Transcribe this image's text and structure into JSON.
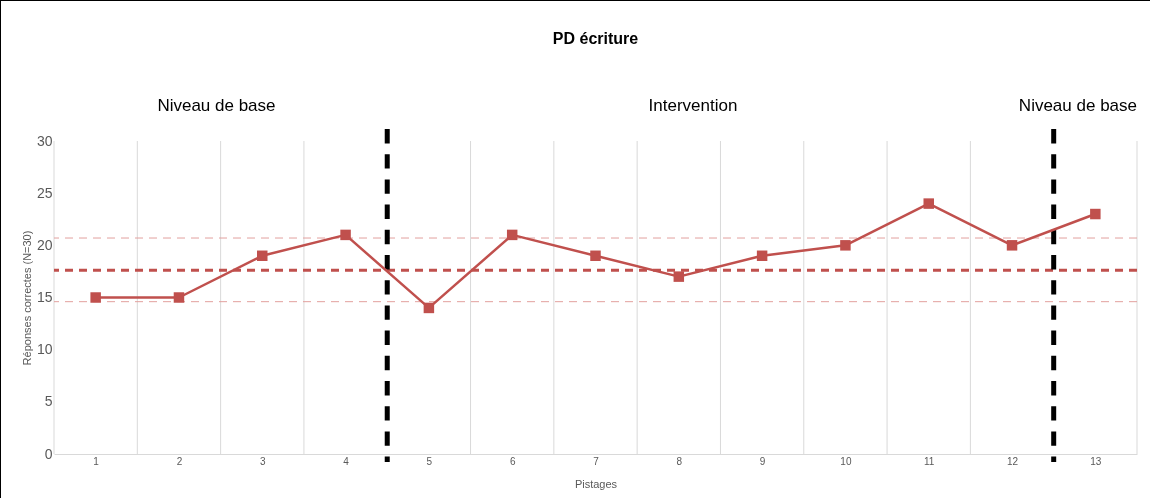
{
  "chart_data": {
    "type": "line",
    "title": "PD écriture",
    "xlabel": "Pistages",
    "ylabel": "Réponses correctes (N=30)",
    "x": [
      1,
      2,
      3,
      4,
      5,
      6,
      7,
      8,
      9,
      10,
      11,
      12,
      13
    ],
    "series": [
      {
        "color": "#c0504d",
        "values": [
          15,
          15,
          19,
          21,
          14,
          21,
          19,
          17,
          19,
          20,
          24,
          20,
          23
        ]
      }
    ],
    "xlim": [
      0.5,
      13.5
    ],
    "xticks": [
      {
        "value": 0.5,
        "label": null
      },
      1,
      {
        "value": 1.5,
        "label": null
      },
      2,
      {
        "value": 2.5,
        "label": null
      },
      3,
      {
        "value": 3.5,
        "label": null
      },
      4,
      5,
      {
        "value": 5.5,
        "label": null
      },
      6,
      {
        "value": 6.5,
        "label": null
      },
      7,
      {
        "value": 7.5,
        "label": null
      },
      8,
      {
        "value": 8.5,
        "label": null
      },
      9,
      {
        "value": 9.5,
        "label": null
      },
      10,
      {
        "value": 10.5,
        "label": null
      },
      11,
      {
        "value": 11.5,
        "label": null
      },
      12,
      13,
      {
        "value": 13.5,
        "label": null
      }
    ],
    "ylim": [
      0,
      30
    ],
    "yticks": [
      0,
      5,
      10,
      15,
      20,
      25,
      30
    ],
    "grid": "x",
    "marker": "square",
    "line_style": "solid",
    "ref_lines": [
      {
        "axis": "y",
        "value": 17.6,
        "color": "#c0504d",
        "line_style": "dashed"
      },
      {
        "axis": "y",
        "value": 20.7,
        "color": "#e3a09e",
        "line_style": "dashed"
      },
      {
        "axis": "y",
        "value": 14.6,
        "color": "#e3a09e",
        "line_style": "dashed"
      },
      {
        "axis": "x",
        "value": 4.5,
        "color": "#000000",
        "line_style": "dashed"
      },
      {
        "axis": "x",
        "value": 12.5,
        "color": "#000000",
        "line_style": "dashed"
      }
    ],
    "annotations": [
      "Niveau de base",
      "Intervention",
      "Niveau de base"
    ]
  }
}
